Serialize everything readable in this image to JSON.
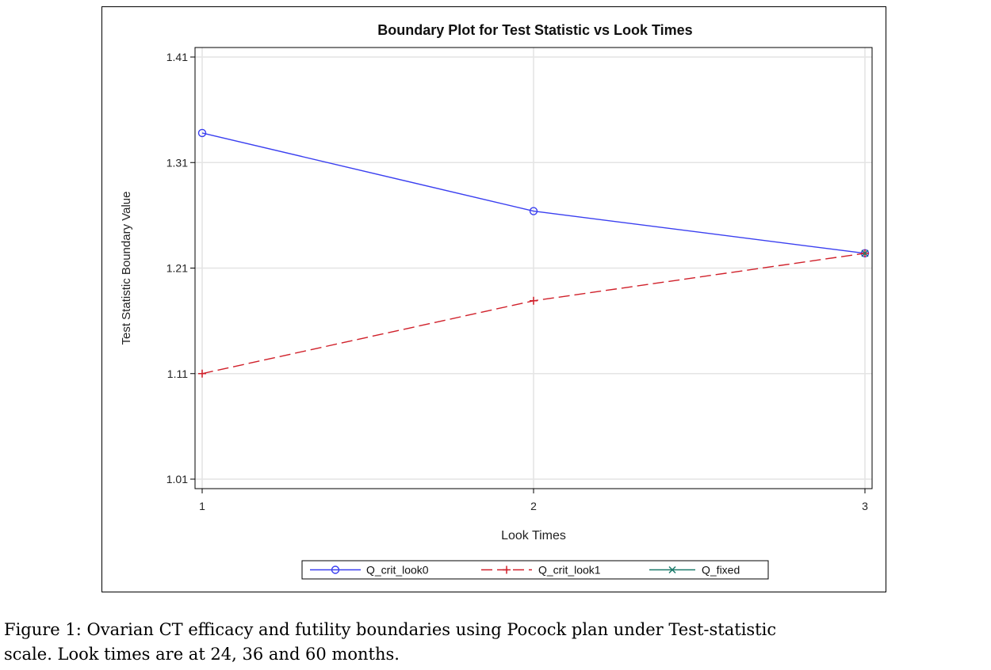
{
  "chart_data": {
    "type": "line",
    "title": "Boundary Plot for Test Statistic vs Look Times",
    "xlabel": "Look Times",
    "ylabel": "Test Statistic Boundary Value",
    "x": [
      1,
      2,
      3
    ],
    "x_ticks": [
      "1",
      "2",
      "3"
    ],
    "y_ticks": [
      "1.01",
      "1.11",
      "1.21",
      "1.31",
      "1.41"
    ],
    "xlim": [
      1,
      3
    ],
    "ylim": [
      1.01,
      1.41
    ],
    "grid": true,
    "legend_position": "bottom",
    "series": [
      {
        "name": "Q_crit_look0",
        "x": [
          1,
          2,
          3
        ],
        "values": [
          1.338,
          1.264,
          1.224
        ],
        "color": "#3a3ff0",
        "marker": "circle",
        "line": "solid"
      },
      {
        "name": "Q_crit_look1",
        "x": [
          1,
          2,
          3
        ],
        "values": [
          1.11,
          1.179,
          1.224
        ],
        "color": "#d0202a",
        "marker": "plus",
        "line": "dashed"
      },
      {
        "name": "Q_fixed",
        "x": [
          3
        ],
        "values": [
          1.224
        ],
        "color": "#1a7a6a",
        "marker": "x",
        "line": "solid"
      }
    ]
  },
  "caption": {
    "line1": "Figure 1: Ovarian CT  efficacy and futility boundaries using Pocock plan under Test-statistic",
    "line2": "scale. Look times are at 24, 36 and 60 months."
  }
}
